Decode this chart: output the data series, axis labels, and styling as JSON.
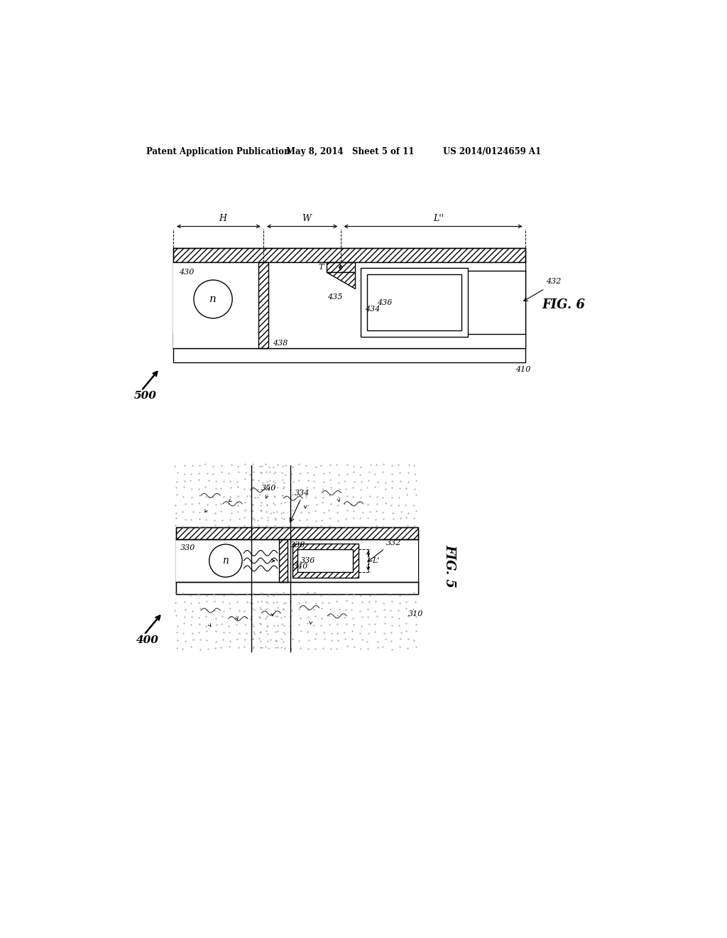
{
  "bg_color": "#ffffff",
  "header_left": "Patent Application Publication",
  "header_mid": "May 8, 2014   Sheet 5 of 11",
  "header_right": "US 2014/0124659 A1",
  "fig6_label": "FIG. 6",
  "fig5_label": "FIG. 5",
  "line_color": "#000000",
  "gray_dot": "#aaaaaa",
  "hatch_gray": "#cccccc"
}
